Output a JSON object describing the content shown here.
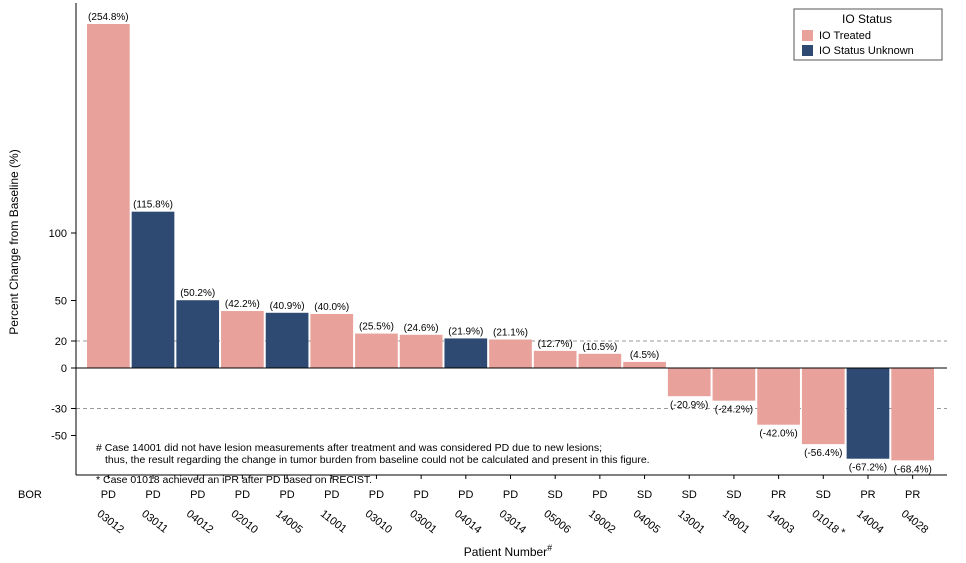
{
  "chart_data": {
    "type": "bar",
    "ylabel": "Percent Change from Baseline (%)",
    "xlabel": "Patient Number",
    "xlabel_mark": "#",
    "yticks": [
      100,
      50,
      20,
      0,
      -30,
      -50
    ],
    "ylim": [
      -76,
      270
    ],
    "reference_lines": [
      20,
      -30
    ],
    "legend": {
      "title": "IO Status",
      "position": "top-right",
      "entries": [
        {
          "key": "treated",
          "label": "IO Treated",
          "color": "#e8a19b"
        },
        {
          "key": "unknown",
          "label": "IO Status Unknown",
          "color": "#2e4a72"
        }
      ]
    },
    "bor_label": "BOR",
    "bars": [
      {
        "patient": "03012",
        "value": 254.8,
        "label": "(254.8%)",
        "status": "treated",
        "bor": "PD"
      },
      {
        "patient": "03011",
        "value": 115.8,
        "label": "(115.8%)",
        "status": "unknown",
        "bor": "PD"
      },
      {
        "patient": "04012",
        "value": 50.2,
        "label": "(50.2%)",
        "status": "unknown",
        "bor": "PD"
      },
      {
        "patient": "02010",
        "value": 42.2,
        "label": "(42.2%)",
        "status": "treated",
        "bor": "PD"
      },
      {
        "patient": "14005",
        "value": 40.9,
        "label": "(40.9%)",
        "status": "unknown",
        "bor": "PD"
      },
      {
        "patient": "11001",
        "value": 40.0,
        "label": "(40.0%)",
        "status": "treated",
        "bor": "PD"
      },
      {
        "patient": "03010",
        "value": 25.5,
        "label": "(25.5%)",
        "status": "treated",
        "bor": "PD"
      },
      {
        "patient": "03001",
        "value": 24.6,
        "label": "(24.6%)",
        "status": "treated",
        "bor": "PD"
      },
      {
        "patient": "04014",
        "value": 21.9,
        "label": "(21.9%)",
        "status": "unknown",
        "bor": "PD"
      },
      {
        "patient": "03014",
        "value": 21.1,
        "label": "(21.1%)",
        "status": "treated",
        "bor": "PD"
      },
      {
        "patient": "05006",
        "value": 12.7,
        "label": "(12.7%)",
        "status": "treated",
        "bor": "SD"
      },
      {
        "patient": "19002",
        "value": 10.5,
        "label": "(10.5%)",
        "status": "treated",
        "bor": "PD"
      },
      {
        "patient": "04005",
        "value": 4.5,
        "label": "(4.5%)",
        "status": "treated",
        "bor": "SD"
      },
      {
        "patient": "13001",
        "value": -20.9,
        "label": "(-20.9%)",
        "status": "treated",
        "bor": "SD"
      },
      {
        "patient": "19001",
        "value": -24.2,
        "label": "(-24.2%)",
        "status": "treated",
        "bor": "SD"
      },
      {
        "patient": "14003",
        "value": -42.0,
        "label": "(-42.0%)",
        "status": "treated",
        "bor": "PR"
      },
      {
        "patient": "01018",
        "value": -56.4,
        "label": "(-56.4%)",
        "status": "treated",
        "bor": "SD",
        "mark": "*"
      },
      {
        "patient": "14004",
        "value": -67.2,
        "label": "(-67.2%)",
        "status": "unknown",
        "bor": "PR"
      },
      {
        "patient": "04028",
        "value": -68.4,
        "label": "(-68.4%)",
        "status": "treated",
        "bor": "PR"
      }
    ],
    "footnotes": [
      "# Case 14001 did not have lesion measurements after treatment and was considered PD due to new lesions;",
      "thus, the result regarding the change in tumor burden from baseline could not be calculated and present in this figure.",
      "* Case 01018 achieved an iPR after PD based on iRECIST."
    ]
  }
}
